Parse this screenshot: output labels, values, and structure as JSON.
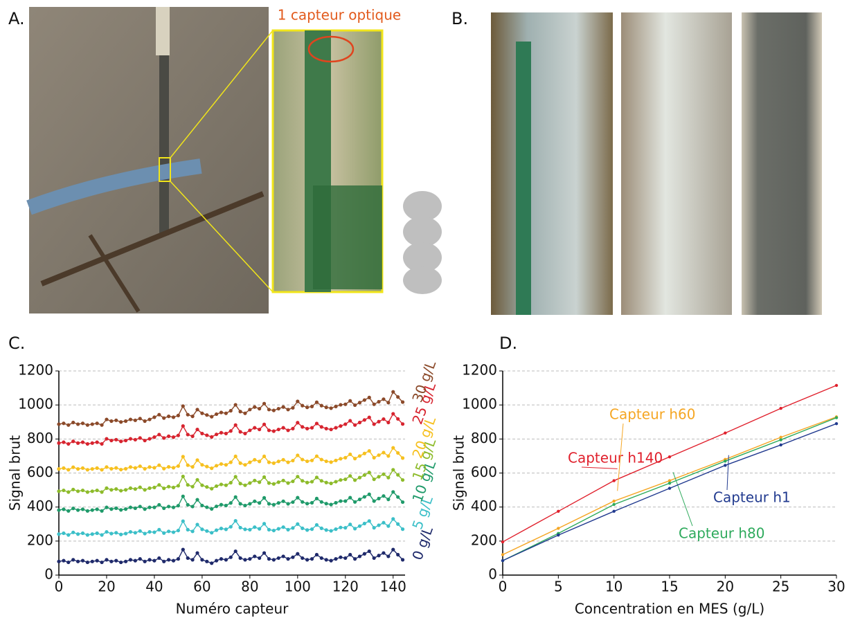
{
  "panels": {
    "a": "A.",
    "b": "B."
  },
  "annotation": "1 capteur optique",
  "chart_data": [
    {
      "type": "line",
      "title": "C.",
      "x_label": "Numéro capteur",
      "y_label": "Signal brut",
      "xlim": [
        0,
        145
      ],
      "xticks": [
        0,
        20,
        40,
        60,
        80,
        100,
        120,
        140
      ],
      "ylim": [
        0,
        1200
      ],
      "yticks": [
        0,
        200,
        400,
        600,
        800,
        1000,
        1200
      ],
      "grid": true,
      "markers": true,
      "x": [
        0,
        2,
        4,
        6,
        8,
        10,
        12,
        14,
        16,
        18,
        20,
        22,
        24,
        26,
        28,
        30,
        32,
        34,
        36,
        38,
        40,
        42,
        44,
        46,
        48,
        50,
        52,
        54,
        56,
        58,
        60,
        62,
        64,
        66,
        68,
        70,
        72,
        74,
        76,
        78,
        80,
        82,
        84,
        86,
        88,
        90,
        92,
        94,
        96,
        98,
        100,
        102,
        104,
        106,
        108,
        110,
        112,
        114,
        116,
        118,
        120,
        122,
        124,
        126,
        128,
        130,
        132,
        134,
        136,
        138,
        140,
        142,
        144
      ],
      "series": [
        {
          "name": "0 g/L",
          "color": "#1f2a6b",
          "values": [
            80,
            85,
            75,
            90,
            80,
            85,
            75,
            80,
            85,
            75,
            90,
            80,
            85,
            75,
            80,
            90,
            85,
            95,
            80,
            90,
            85,
            100,
            80,
            90,
            85,
            95,
            150,
            100,
            90,
            130,
            90,
            80,
            70,
            85,
            95,
            90,
            105,
            140,
            100,
            90,
            95,
            110,
            100,
            130,
            95,
            90,
            100,
            110,
            95,
            105,
            125,
            100,
            90,
            95,
            120,
            100,
            90,
            85,
            95,
            105,
            100,
            120,
            95,
            110,
            125,
            140,
            100,
            115,
            130,
            110,
            150,
            120,
            90
          ]
        },
        {
          "name": "5 g/L",
          "color": "#3bbfc8",
          "values": [
            241,
            246,
            236,
            251,
            241,
            246,
            236,
            241,
            246,
            236,
            254,
            244,
            249,
            239,
            244,
            254,
            249,
            259,
            244,
            254,
            252,
            267,
            247,
            257,
            252,
            262,
            317,
            267,
            257,
            297,
            269,
            259,
            249,
            264,
            274,
            269,
            284,
            319,
            279,
            269,
            267,
            282,
            272,
            302,
            267,
            262,
            272,
            282,
            267,
            277,
            300,
            275,
            265,
            270,
            295,
            275,
            265,
            260,
            270,
            280,
            278,
            298,
            273,
            288,
            303,
            318,
            278,
            293,
            308,
            288,
            330,
            300,
            270
          ]
        },
        {
          "name": "10 g/L",
          "color": "#1f9a6a",
          "values": [
            382,
            387,
            377,
            392,
            382,
            387,
            377,
            382,
            387,
            377,
            398,
            388,
            393,
            383,
            388,
            398,
            393,
            403,
            388,
            398,
            398,
            413,
            393,
            403,
            398,
            408,
            463,
            413,
            403,
            443,
            409,
            399,
            389,
            404,
            414,
            409,
            424,
            459,
            419,
            409,
            419,
            434,
            424,
            454,
            419,
            414,
            424,
            434,
            419,
            429,
            455,
            430,
            420,
            425,
            450,
            430,
            420,
            415,
            425,
            435,
            435,
            455,
            430,
            445,
            460,
            475,
            435,
            450,
            465,
            445,
            489,
            459,
            429
          ]
        },
        {
          "name": "15 g/L",
          "color": "#8dbb2a",
          "values": [
            493,
            498,
            488,
            503,
            493,
            498,
            488,
            493,
            498,
            488,
            511,
            501,
            506,
            496,
            501,
            511,
            506,
            516,
            501,
            511,
            515,
            530,
            510,
            520,
            515,
            525,
            580,
            530,
            520,
            560,
            528,
            518,
            508,
            523,
            533,
            528,
            543,
            578,
            538,
            528,
            541,
            556,
            546,
            576,
            541,
            536,
            546,
            556,
            541,
            551,
            579,
            554,
            544,
            549,
            574,
            554,
            544,
            539,
            549,
            559,
            563,
            583,
            558,
            573,
            588,
            603,
            563,
            578,
            593,
            573,
            619,
            589,
            559
          ]
        },
        {
          "name": "20 g/L",
          "color": "#f6c01f",
          "values": [
            624,
            629,
            619,
            634,
            624,
            629,
            619,
            624,
            629,
            619,
            635,
            625,
            630,
            620,
            625,
            635,
            630,
            640,
            625,
            635,
            631,
            646,
            626,
            636,
            631,
            641,
            696,
            646,
            636,
            676,
            648,
            638,
            628,
            643,
            653,
            648,
            663,
            698,
            658,
            648,
            663,
            678,
            668,
            698,
            663,
            658,
            668,
            678,
            663,
            673,
            704,
            679,
            669,
            674,
            699,
            679,
            669,
            664,
            674,
            684,
            690,
            710,
            685,
            700,
            715,
            730,
            690,
            705,
            720,
            700,
            748,
            718,
            688
          ]
        },
        {
          "name": "25 g/L",
          "color": "#d7242f",
          "values": [
            776,
            781,
            771,
            786,
            776,
            781,
            771,
            776,
            781,
            771,
            801,
            791,
            796,
            786,
            791,
            801,
            796,
            806,
            791,
            801,
            811,
            826,
            806,
            816,
            811,
            821,
            876,
            826,
            816,
            856,
            832,
            822,
            812,
            827,
            837,
            832,
            847,
            882,
            842,
            832,
            851,
            866,
            856,
            886,
            851,
            846,
            856,
            866,
            851,
            861,
            896,
            871,
            861,
            866,
            891,
            871,
            861,
            856,
            866,
            876,
            887,
            907,
            882,
            897,
            912,
            927,
            887,
            902,
            917,
            897,
            948,
            918,
            888
          ]
        },
        {
          "name": "30 g/L",
          "color": "#8b4a2a",
          "values": [
            887,
            892,
            882,
            897,
            887,
            892,
            882,
            887,
            892,
            882,
            915,
            905,
            910,
            900,
            905,
            915,
            910,
            920,
            905,
            915,
            928,
            943,
            923,
            933,
            928,
            938,
            993,
            943,
            933,
            973,
            951,
            941,
            931,
            946,
            956,
            951,
            966,
            1001,
            961,
            951,
            973,
            988,
            978,
            1008,
            973,
            968,
            978,
            988,
            973,
            983,
            1021,
            996,
            986,
            991,
            1016,
            996,
            986,
            981,
            991,
            1001,
            1004,
            1024,
            999,
            1014,
            1029,
            1044,
            1004,
            1019,
            1034,
            1014,
            1077,
            1047,
            1017
          ]
        }
      ]
    },
    {
      "type": "line",
      "title": "D.",
      "x_label": "Concentration en MES (g/L)",
      "y_label": "Signal brut",
      "xlim": [
        0,
        30
      ],
      "xticks": [
        0,
        5,
        10,
        15,
        20,
        25,
        30
      ],
      "ylim": [
        0,
        1200
      ],
      "yticks": [
        0,
        200,
        400,
        600,
        800,
        1000,
        1200
      ],
      "grid": true,
      "markers": true,
      "x": [
        0,
        5,
        10,
        15,
        20,
        25,
        30
      ],
      "series": [
        {
          "name": "Capteur h140",
          "color": "#e0202c",
          "values": [
            195,
            375,
            555,
            695,
            835,
            980,
            1115
          ]
        },
        {
          "name": "Capteur h60",
          "color": "#f5a623",
          "values": [
            120,
            275,
            435,
            555,
            680,
            810,
            930
          ]
        },
        {
          "name": "Capteur h80",
          "color": "#2eaa5c",
          "values": [
            85,
            245,
            415,
            540,
            670,
            795,
            925
          ]
        },
        {
          "name": "Capteur h1",
          "color": "#213a8f",
          "values": [
            85,
            235,
            375,
            510,
            645,
            765,
            890
          ]
        }
      ]
    }
  ]
}
